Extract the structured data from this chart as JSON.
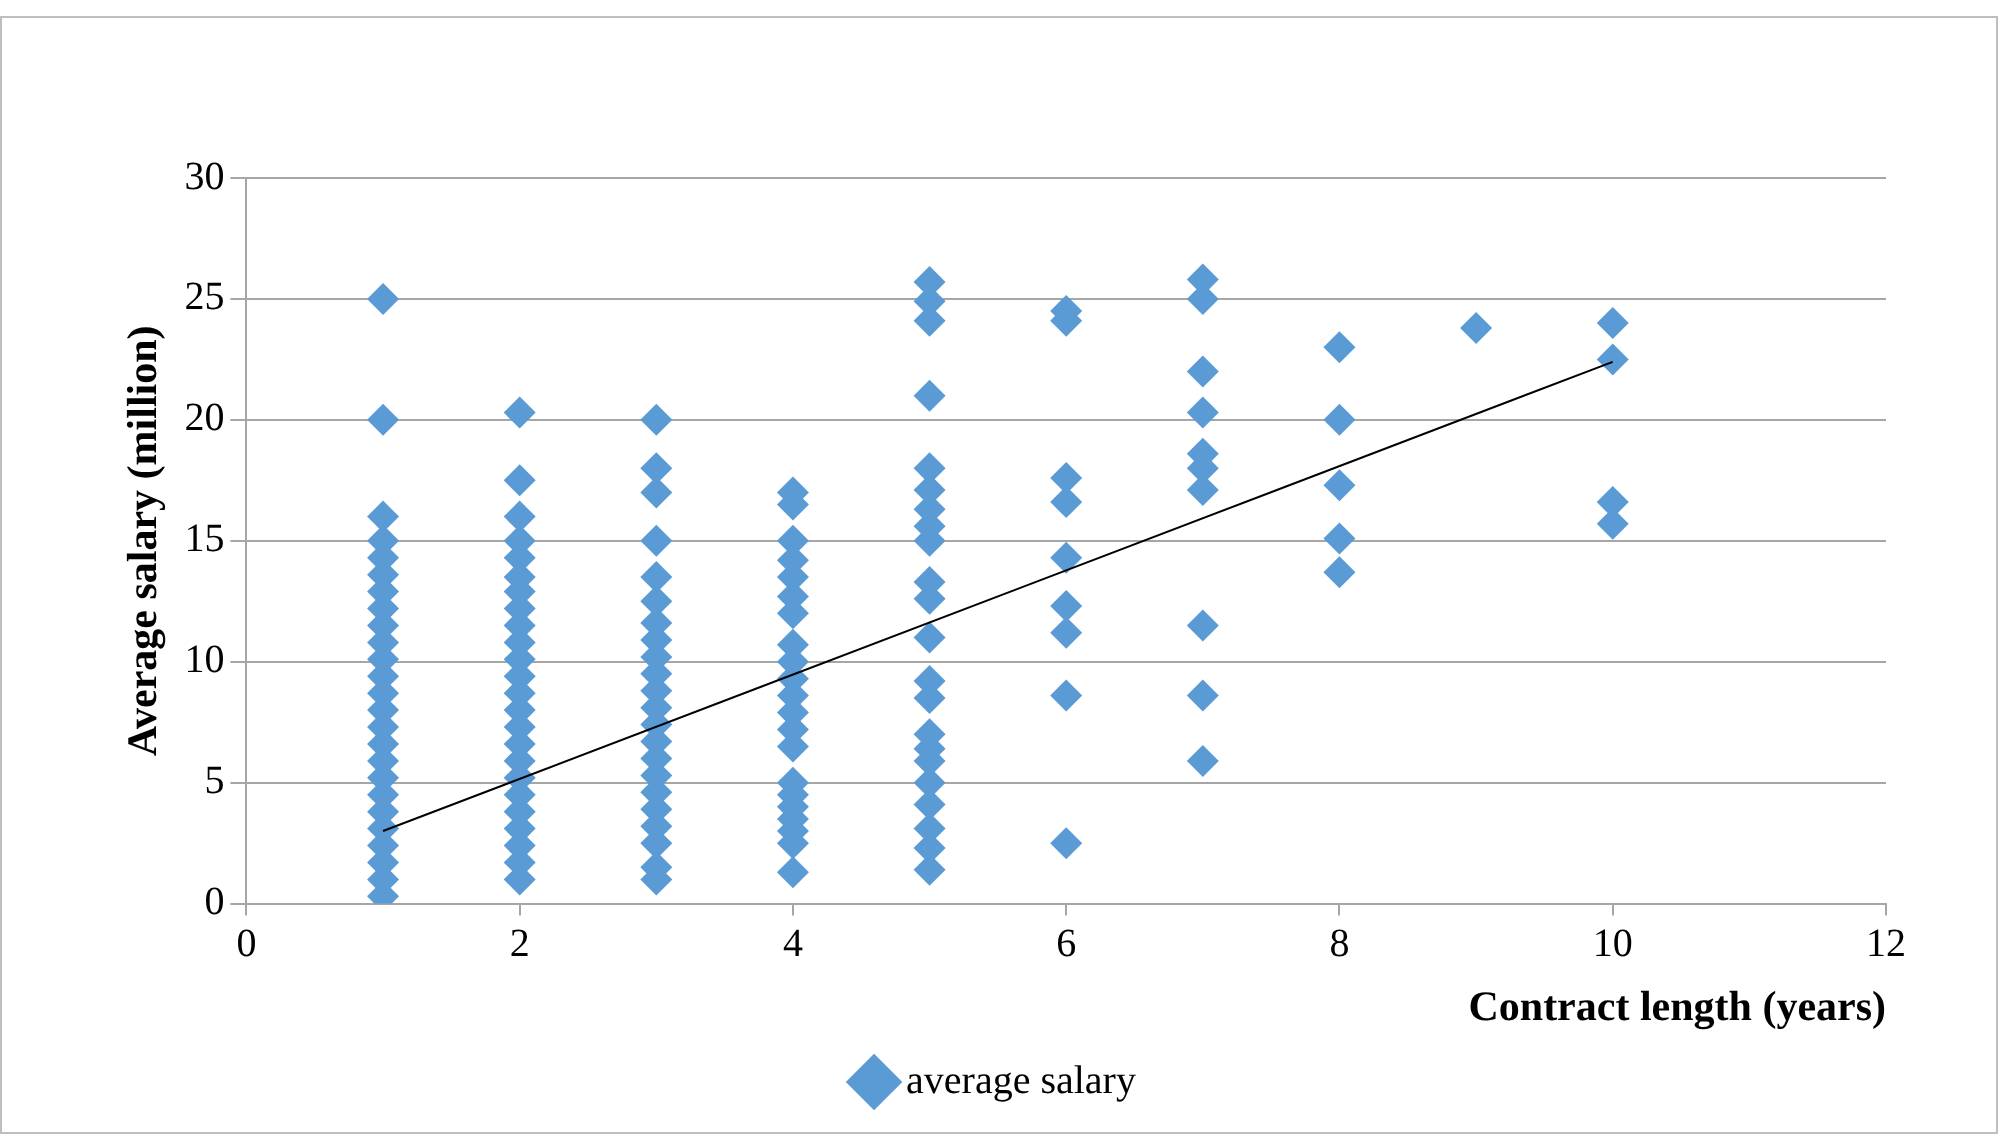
{
  "chart_data": {
    "type": "scatter",
    "xlabel": "Contract length (years)",
    "ylabel": "Average salary (million)",
    "xlim": [
      0,
      12
    ],
    "xticks": [
      0,
      2,
      4,
      6,
      8,
      10,
      12
    ],
    "ylim": [
      0,
      30
    ],
    "yticks": [
      0,
      5,
      10,
      15,
      20,
      25,
      30
    ],
    "grid": "y",
    "legend": "bottom",
    "marker": "diamond",
    "series": [
      {
        "name": "average salary",
        "color": "#5b9bd5",
        "type": "scatter",
        "x": [
          1,
          1,
          1,
          1,
          1,
          1,
          1,
          1,
          1,
          1,
          1,
          1,
          1,
          1,
          1,
          1,
          1,
          1,
          1,
          1,
          1,
          1,
          1,
          1,
          1,
          2,
          2,
          2,
          2,
          2,
          2,
          2,
          2,
          2,
          2,
          2,
          2,
          2,
          2,
          2,
          2,
          2,
          2,
          2,
          2,
          2,
          2,
          2,
          2,
          3,
          3,
          3,
          3,
          3,
          3,
          3,
          3,
          3,
          3,
          3,
          3,
          3,
          3,
          3,
          3,
          3,
          3,
          3,
          3,
          3,
          3,
          4,
          4,
          4,
          4,
          4,
          4,
          4,
          4,
          4,
          4,
          4,
          4,
          4,
          4,
          4,
          4,
          4,
          4,
          4,
          4,
          4,
          5,
          5,
          5,
          5,
          5,
          5,
          5,
          5,
          5,
          5,
          5,
          5,
          5,
          5,
          5,
          5,
          5,
          5,
          5,
          5,
          5,
          5,
          6,
          6,
          6,
          6,
          6,
          6,
          6,
          6,
          6,
          7,
          7,
          7,
          7,
          7,
          7,
          7,
          7,
          7,
          7,
          8,
          8,
          8,
          8,
          8,
          9,
          10,
          10,
          10,
          10
        ],
        "values": [
          0.3,
          1,
          1.7,
          2.4,
          3.1,
          3.8,
          4.5,
          5.2,
          5.9,
          6.6,
          7.3,
          8,
          8.7,
          9.4,
          10.1,
          10.8,
          11.5,
          12.2,
          12.9,
          13.6,
          14.3,
          15,
          16,
          20,
          25,
          1,
          1.7,
          2.4,
          3.1,
          3.8,
          4.5,
          5.2,
          5.9,
          6.6,
          7.3,
          8,
          8.7,
          9.4,
          10.1,
          10.8,
          11.5,
          12.2,
          12.9,
          13.5,
          14.3,
          15,
          16,
          17.5,
          20.3,
          1,
          1.5,
          2.5,
          3.2,
          3.9,
          4.6,
          5.3,
          6,
          6.7,
          7.4,
          8.1,
          8.8,
          9.5,
          10.2,
          10.9,
          11.6,
          12.5,
          13.5,
          15,
          17,
          18,
          20,
          1.3,
          2.5,
          3,
          3.5,
          4,
          4.5,
          5,
          6.5,
          7.2,
          7.9,
          8.6,
          9.3,
          10,
          10.7,
          12,
          12.7,
          13.5,
          14.2,
          15,
          16.5,
          17,
          1.4,
          2.3,
          3.1,
          4.1,
          5,
          5.9,
          6.4,
          7,
          8.5,
          9.2,
          11,
          12.6,
          13.3,
          15,
          15.6,
          16.3,
          17.1,
          18,
          21,
          24.1,
          24.9,
          25.7,
          2.5,
          8.6,
          11.2,
          12.3,
          14.3,
          16.6,
          17.6,
          24.1,
          24.5,
          5.9,
          8.6,
          11.5,
          17.1,
          18,
          18.6,
          20.3,
          22,
          25,
          25.8,
          13.7,
          15.1,
          17.3,
          20,
          23,
          23.8,
          15.7,
          16.6,
          22.5,
          24
        ]
      },
      {
        "color": "#000000",
        "type": "line",
        "marker": "none",
        "x": [
          1,
          10
        ],
        "values": [
          3.0,
          22.4
        ]
      }
    ]
  }
}
